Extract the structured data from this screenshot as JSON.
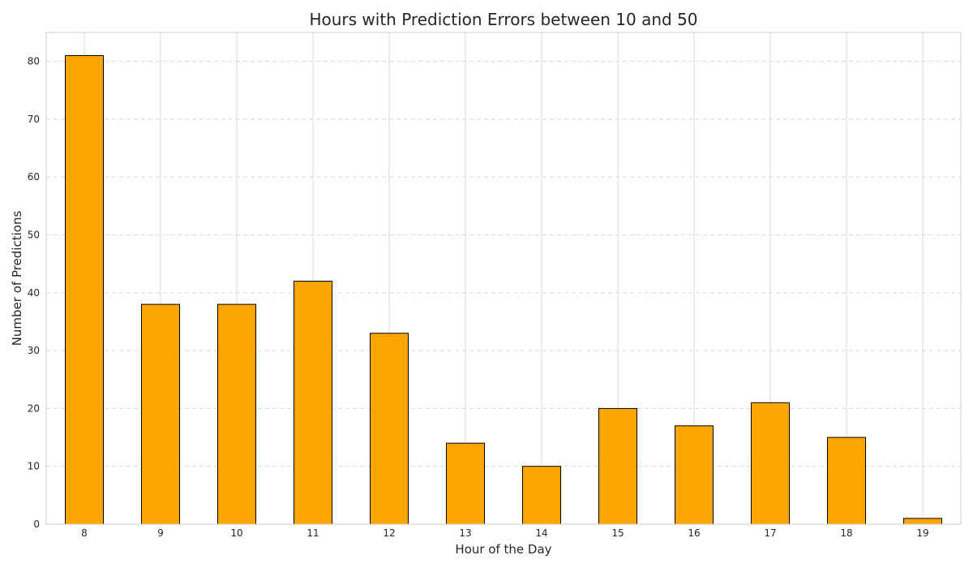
{
  "chart_data": {
    "type": "bar",
    "title": "Hours with Prediction Errors between 10 and 50",
    "xlabel": "Hour of the Day",
    "ylabel": "Number of Predictions",
    "categories": [
      "8",
      "9",
      "10",
      "11",
      "12",
      "13",
      "14",
      "15",
      "16",
      "17",
      "18",
      "19"
    ],
    "values": [
      81,
      38,
      38,
      42,
      33,
      14,
      10,
      20,
      17,
      21,
      15,
      1
    ],
    "ylim": [
      0,
      85
    ],
    "yticks": [
      0,
      10,
      20,
      30,
      40,
      50,
      60,
      70,
      80
    ],
    "grid": true,
    "bar_color": "#ffa500",
    "edge_color": "#000000",
    "legend": "none"
  }
}
